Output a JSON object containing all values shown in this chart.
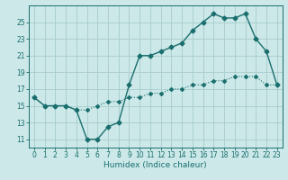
{
  "xlabel": "Humidex (Indice chaleur)",
  "bg_color": "#cce8e8",
  "grid_color": "#a8cccc",
  "line_color": "#1a6e6e",
  "xlim": [
    -0.5,
    23.5
  ],
  "ylim": [
    10.0,
    27.0
  ],
  "yticks": [
    11,
    13,
    15,
    17,
    19,
    21,
    23,
    25
  ],
  "xticks": [
    0,
    1,
    2,
    3,
    4,
    5,
    6,
    7,
    8,
    9,
    10,
    11,
    12,
    13,
    14,
    15,
    16,
    17,
    18,
    19,
    20,
    21,
    22,
    23
  ],
  "line1_x": [
    0,
    1,
    2,
    3,
    4,
    5,
    6,
    7,
    8,
    9,
    10,
    11,
    12,
    13,
    14,
    15,
    16,
    17,
    18,
    19,
    20,
    21,
    22,
    23
  ],
  "line1_y": [
    16.0,
    15.0,
    15.0,
    15.0,
    14.5,
    11.0,
    11.0,
    12.5,
    13.0,
    17.5,
    21.0,
    21.0,
    21.5,
    22.0,
    22.5,
    24.0,
    25.0,
    26.0,
    25.5,
    25.5,
    26.0,
    23.0,
    21.5,
    17.5
  ],
  "line2_x": [
    0,
    1,
    2,
    3,
    4,
    5,
    6,
    7,
    8,
    9,
    10,
    11,
    12,
    13,
    14,
    15,
    16,
    17,
    18,
    19,
    20,
    21,
    22,
    23
  ],
  "line2_y": [
    16.0,
    15.0,
    15.0,
    15.0,
    14.5,
    14.5,
    15.0,
    15.5,
    15.5,
    16.0,
    16.0,
    16.5,
    16.5,
    17.0,
    17.0,
    17.5,
    17.5,
    18.0,
    18.0,
    18.5,
    18.5,
    18.5,
    17.5,
    17.5
  ],
  "tick_fontsize": 5.5,
  "xlabel_fontsize": 6.5
}
